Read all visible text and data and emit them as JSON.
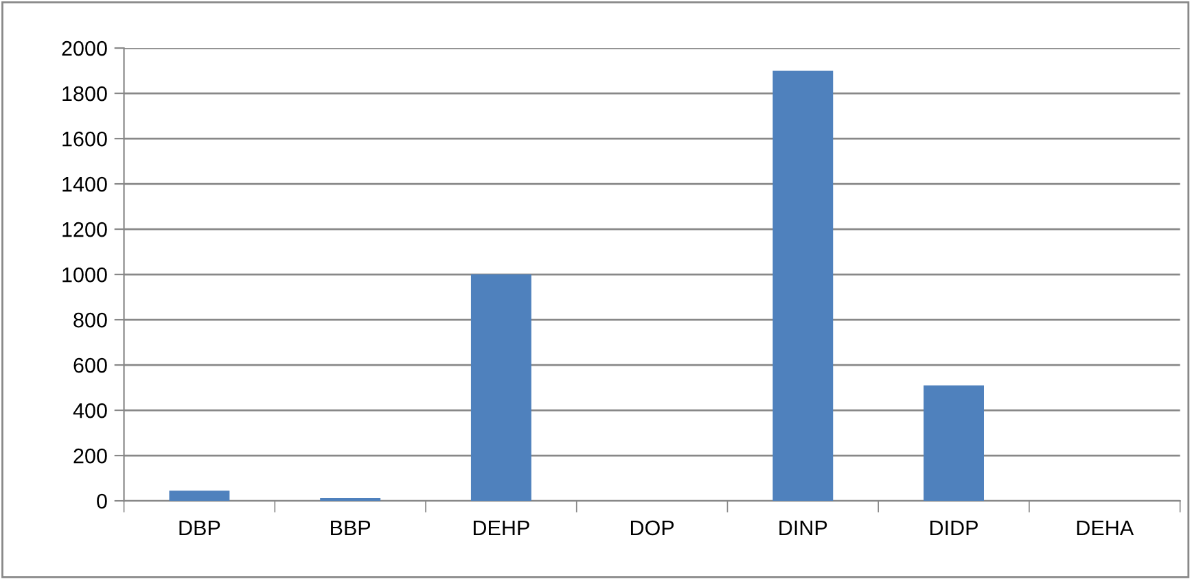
{
  "chart_data": {
    "type": "bar",
    "categories": [
      "DBP",
      "BBP",
      "DEHP",
      "DOP",
      "DINP",
      "DIDP",
      "DEHA"
    ],
    "values": [
      45,
      12,
      1000,
      0,
      1900,
      510,
      0
    ],
    "color": "#4f81bd",
    "ylim": [
      0,
      2000
    ],
    "yticks": [
      0,
      200,
      400,
      600,
      800,
      1000,
      1200,
      1400,
      1600,
      1800,
      2000
    ],
    "grid": "y"
  }
}
